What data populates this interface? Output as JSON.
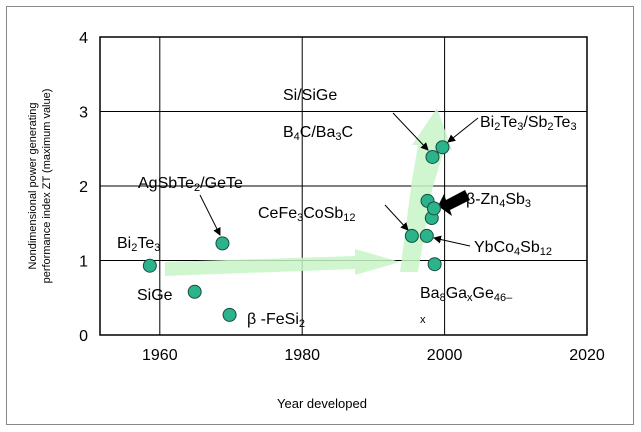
{
  "chart_data": {
    "type": "scatter",
    "x_label": "Year developed",
    "y_label": [
      "Nondimensional power generating",
      "performance index ZT (maximum value)"
    ],
    "x": [
      1958.6,
      1964.9,
      1968.8,
      1969.8,
      1995.4,
      1997.5,
      1997.6,
      1998.2,
      1998.5,
      1998.6,
      1998.3,
      1999.7
    ],
    "values": [
      0.93,
      0.58,
      1.23,
      0.27,
      1.33,
      1.33,
      1.8,
      1.57,
      1.7,
      0.95,
      2.39,
      2.52
    ],
    "color": "#2bb38c",
    "xlim": [
      1951.6,
      2020
    ],
    "ylim": [
      0,
      4
    ],
    "xticks": [
      1960,
      1980,
      2000,
      2020
    ],
    "yticks": [
      0,
      1,
      2,
      3,
      4
    ],
    "grid": true,
    "annotations": [
      {
        "parts": [
          "Si/SiGe"
        ]
      },
      {
        "parts": [
          "B",
          {
            "sub": "4"
          },
          "C/Ba",
          {
            "sub": "3"
          },
          "C"
        ]
      },
      {
        "parts": [
          "Bi",
          {
            "sub": "2"
          },
          "Te",
          {
            "sub": "3"
          },
          "/Sb",
          {
            "sub": "2"
          },
          "Te",
          {
            "sub": "3"
          }
        ]
      },
      {
        "parts": [
          "AgSbTe",
          {
            "sub": "2"
          },
          "/GeTe"
        ]
      },
      {
        "parts": [
          "β-Zn",
          {
            "sub": "4"
          },
          "Sb",
          {
            "sub": "3"
          }
        ]
      },
      {
        "parts": [
          "CeFe",
          {
            "sub": "3"
          },
          "CoSb",
          {
            "sub": "12"
          }
        ]
      },
      {
        "parts": [
          "Bi",
          {
            "sub": "2"
          },
          "Te",
          {
            "sub": "3"
          }
        ]
      },
      {
        "parts": [
          "YbCo",
          {
            "sub": "4"
          },
          "Sb",
          {
            "sub": "12"
          }
        ]
      },
      {
        "parts": [
          "SiGe"
        ]
      },
      {
        "parts": [
          "β -FeSi",
          {
            "sub": "2"
          }
        ]
      },
      {
        "parts": [
          "Ba",
          {
            "sub": "8"
          },
          "Ga",
          {
            "sub": "x"
          },
          "Ge",
          {
            "sub": "46–"
          }
        ]
      },
      {
        "parts": [
          {
            "sub": "x"
          }
        ]
      }
    ]
  }
}
